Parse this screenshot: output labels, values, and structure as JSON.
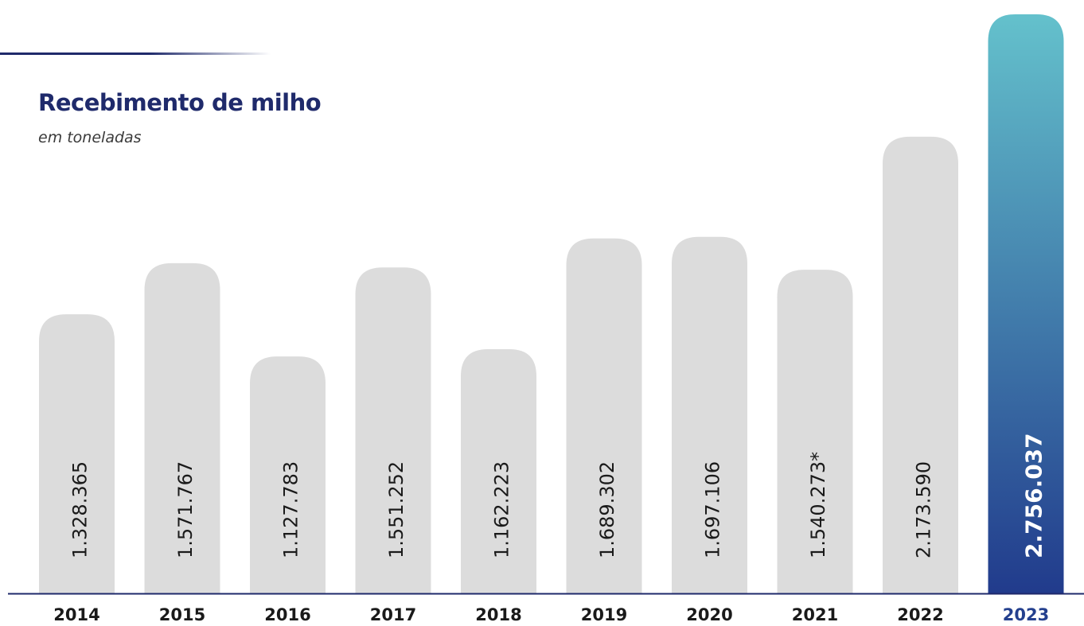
{
  "chart_data": {
    "type": "bar",
    "title": "Recebimento de milho",
    "subtitle": "em toneladas",
    "categories": [
      "2014",
      "2015",
      "2016",
      "2017",
      "2018",
      "2019",
      "2020",
      "2021",
      "2022",
      "2023"
    ],
    "values": [
      1328365,
      1571767,
      1127783,
      1551252,
      1162223,
      1689302,
      1697106,
      1540273,
      2173590,
      2756037
    ],
    "value_labels": [
      "1.328.365",
      "1.571.767",
      "1.127.783",
      "1.551.252",
      "1.162.223",
      "1.689.302",
      "1.697.106",
      "1.540.273*",
      "2.173.590",
      "2.756.037"
    ],
    "highlight_category": "2023",
    "value_label_orientation": "vertical",
    "grid": false,
    "legend": "none",
    "colors": {
      "bar": "#dcdcdc",
      "highlight_top": "#64c1cc",
      "highlight_bottom": "#213b8c",
      "axis": "#1f2a6b",
      "title": "#1f2a6b",
      "highlight_tick": "#24408e"
    }
  }
}
